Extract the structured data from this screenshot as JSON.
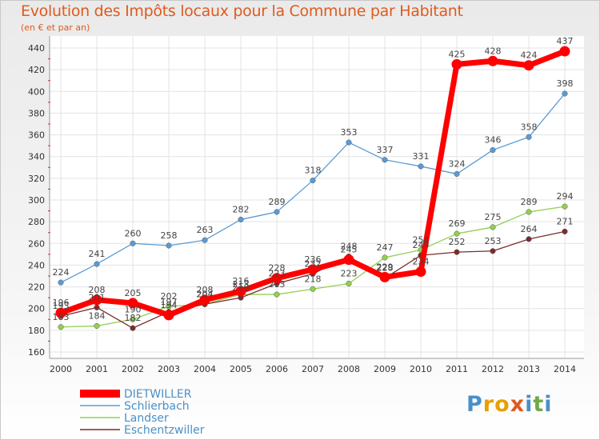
{
  "chart_data": {
    "type": "line",
    "title": "Evolution des Impôts locaux pour la Commune par Habitant",
    "subtitle": "(en € et par an)",
    "categories": [
      "2000",
      "2001",
      "2002",
      "2003",
      "2004",
      "2005",
      "2006",
      "2007",
      "2008",
      "2009",
      "2010",
      "2011",
      "2012",
      "2013",
      "2014"
    ],
    "ylim": [
      160,
      440
    ],
    "yticks": [
      160,
      180,
      200,
      220,
      240,
      260,
      280,
      300,
      320,
      340,
      360,
      380,
      400,
      420,
      440
    ],
    "grid": true,
    "legend_position": "bottom-left",
    "series": [
      {
        "name": "DIETWILLER",
        "color": "#ff0000",
        "values": [
          196,
          208,
          205,
          194,
          208,
          216,
          228,
          236,
          245,
          229,
          234,
          425,
          428,
          424,
          437
        ]
      },
      {
        "name": "Schlierbach",
        "color": "#5b9bd5",
        "values": [
          224,
          241,
          260,
          258,
          263,
          282,
          289,
          318,
          353,
          337,
          331,
          324,
          346,
          358,
          398
        ]
      },
      {
        "name": "Landser",
        "color": "#92d050",
        "values": [
          183,
          184,
          190,
          202,
          204,
          213,
          213,
          218,
          223,
          247,
          254,
          269,
          275,
          289,
          294
        ]
      },
      {
        "name": "Eschentzwiller",
        "color": "#7b2c2c",
        "values": [
          193,
          201,
          182,
          197,
          204,
          210,
          223,
          232,
          248,
          228,
          249,
          252,
          253,
          264,
          271
        ]
      }
    ]
  },
  "logo": {
    "text": "Proxiti",
    "letters": [
      "P",
      "r",
      "o",
      "x",
      "i",
      "t",
      "i"
    ],
    "colors": [
      "#4a90c8",
      "#e6a000",
      "#e6a000",
      "#e05a1e",
      "#4a90c8",
      "#70a848",
      "#4a90c8"
    ]
  }
}
